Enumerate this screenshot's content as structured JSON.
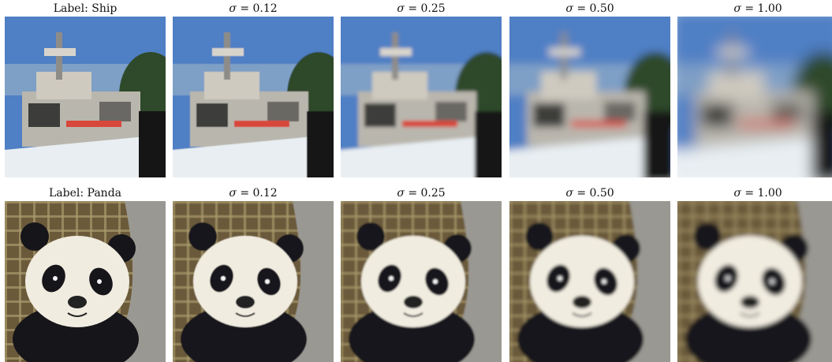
{
  "figure": {
    "rows": [
      {
        "label": "Label: Ship",
        "subject": "ship",
        "panels": [
          {
            "caption": "Label: Ship",
            "sigma_text": "",
            "noise_sigma": 0.0
          },
          {
            "caption": "",
            "sigma_symbol": "σ",
            "sigma_text": " = 0.12",
            "noise_sigma": 0.12
          },
          {
            "caption": "",
            "sigma_symbol": "σ",
            "sigma_text": " = 0.25",
            "noise_sigma": 0.25
          },
          {
            "caption": "",
            "sigma_symbol": "σ",
            "sigma_text": " = 0.50",
            "noise_sigma": 0.5
          },
          {
            "caption": "",
            "sigma_symbol": "σ",
            "sigma_text": " = 1.00",
            "noise_sigma": 1.0
          }
        ]
      },
      {
        "label": "Label: Panda",
        "subject": "panda",
        "panels": [
          {
            "caption": "Label: Panda",
            "sigma_text": "",
            "noise_sigma": 0.0
          },
          {
            "caption": "",
            "sigma_symbol": "σ",
            "sigma_text": " = 0.12",
            "noise_sigma": 0.12
          },
          {
            "caption": "",
            "sigma_symbol": "σ",
            "sigma_text": " = 0.25",
            "noise_sigma": 0.25
          },
          {
            "caption": "",
            "sigma_symbol": "σ",
            "sigma_text": " = 0.50",
            "noise_sigma": 0.5
          },
          {
            "caption": "",
            "sigma_symbol": "σ",
            "sigma_text": " = 1.00",
            "noise_sigma": 1.0
          }
        ]
      }
    ]
  },
  "colors": {
    "sky": "#4f7fc4",
    "ship_hull": "#e8eef2",
    "ship_stripe": "#d8473b",
    "panda_white": "#f1ece0",
    "panda_black": "#15151a",
    "rock": "#9a9892",
    "fence": "#a99a6c"
  }
}
